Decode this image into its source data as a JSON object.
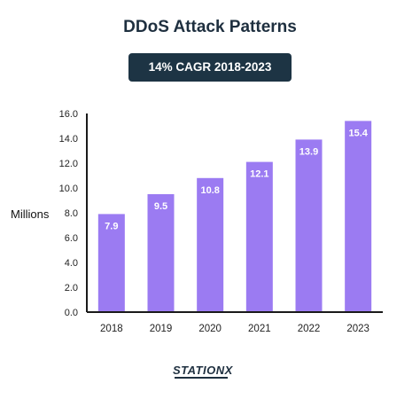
{
  "header": {
    "title": "DDoS Attack Patterns",
    "badge": "14% CAGR 2018-2023"
  },
  "footer": {
    "logo_text": "STATIONX"
  },
  "colors": {
    "bar": "#9b7bf2",
    "badge_bg": "#1d3444",
    "title": "#1e2f3f",
    "axis": "#1a1a1a"
  },
  "chart_data": {
    "type": "bar",
    "title": "DDoS Attack Patterns",
    "subtitle": "14% CAGR 2018-2023",
    "xlabel": "",
    "ylabel": "Millions",
    "categories": [
      "2018",
      "2019",
      "2020",
      "2021",
      "2022",
      "2023"
    ],
    "values": [
      7.9,
      9.5,
      10.8,
      12.1,
      13.9,
      15.4
    ],
    "data_labels": [
      "7.9",
      "9.5",
      "10.8",
      "12.1",
      "13.9",
      "15.4"
    ],
    "ylim": [
      0,
      16
    ],
    "yticks": [
      "0.0",
      "2.0",
      "4.0",
      "6.0",
      "8.0",
      "10.0",
      "12.0",
      "14.0",
      "16.0"
    ],
    "grid": false,
    "legend": "none"
  }
}
